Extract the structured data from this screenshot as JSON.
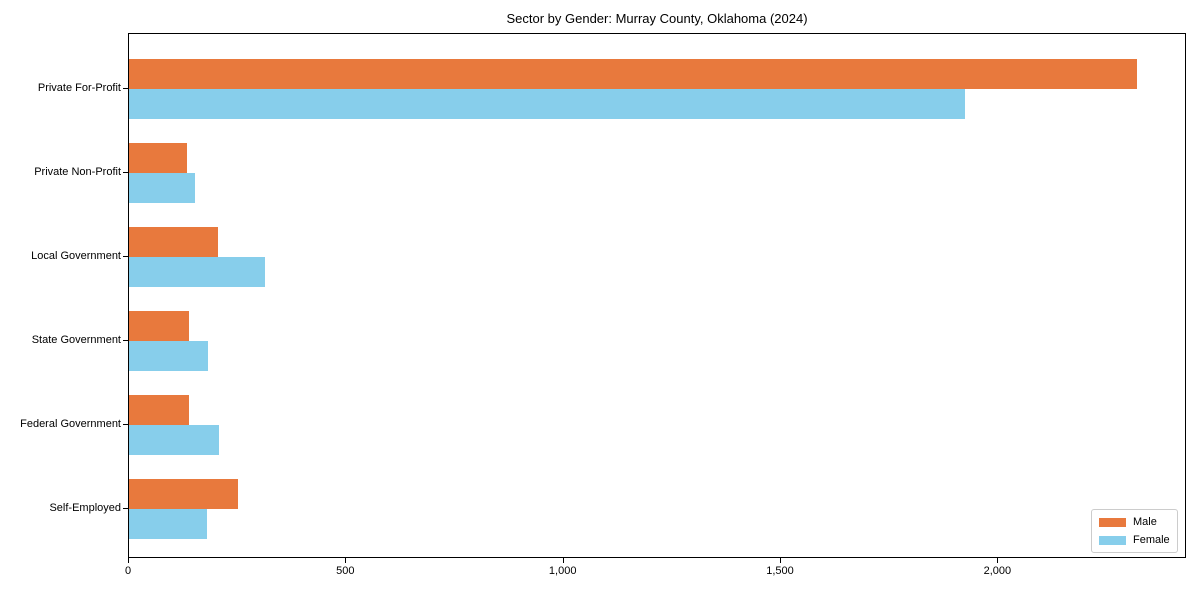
{
  "chart_data": {
    "type": "bar",
    "orientation": "horizontal",
    "title": "Sector by Gender: Murray County, Oklahoma (2024)",
    "categories": [
      "Private For-Profit",
      "Private Non-Profit",
      "Local Government",
      "State Government",
      "Federal Government",
      "Self-Employed"
    ],
    "series": [
      {
        "name": "Male",
        "color": "#e8793d",
        "values": [
          2318,
          134,
          205,
          138,
          139,
          251
        ]
      },
      {
        "name": "Female",
        "color": "#87ceeb",
        "values": [
          1923,
          151,
          312,
          182,
          208,
          180
        ]
      }
    ],
    "xlabel": "",
    "ylabel": "",
    "xlim": [
      0,
      2434
    ],
    "x_ticks": [
      {
        "value": 0,
        "label": "0"
      },
      {
        "value": 500,
        "label": "500"
      },
      {
        "value": 1000,
        "label": "1,000"
      },
      {
        "value": 1500,
        "label": "1,500"
      },
      {
        "value": 2000,
        "label": "2,000"
      }
    ],
    "grid": false,
    "legend": {
      "position": "lower right"
    }
  }
}
